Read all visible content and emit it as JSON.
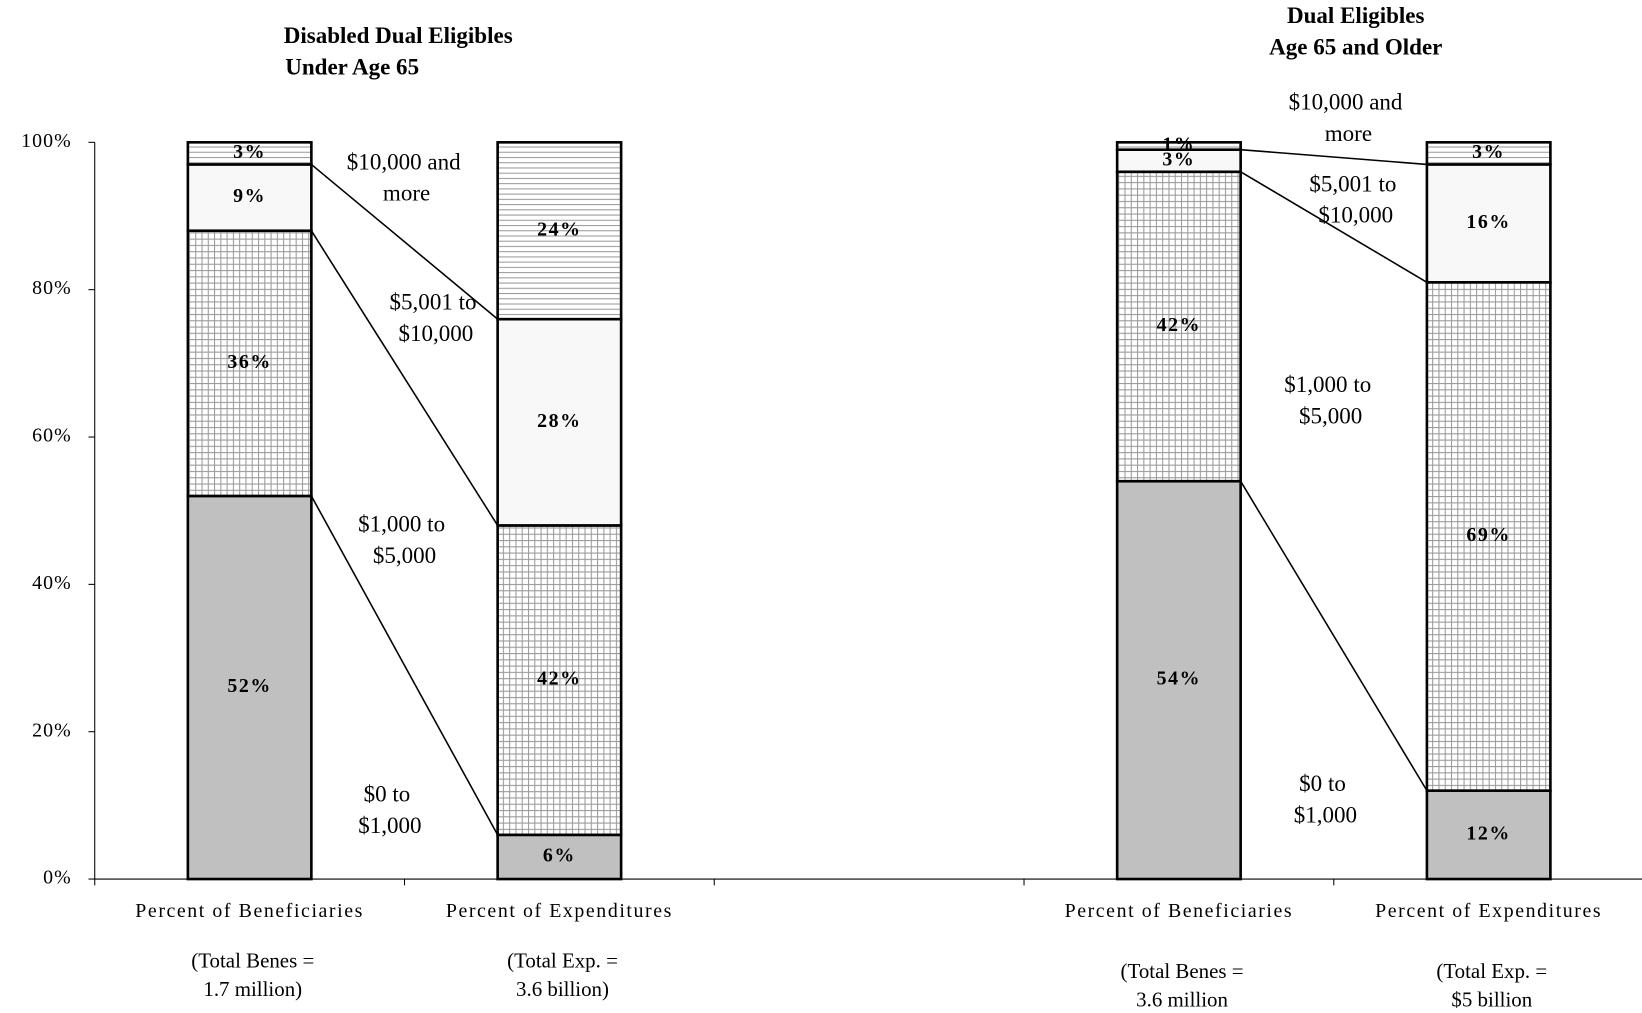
{
  "chart_data": {
    "type": "stacked_bar",
    "group_titles": [
      [
        "Disabled Dual Eligibles",
        "Under Age 65"
      ],
      [
        "Dual Eligibles",
        "Age 65 and Older"
      ]
    ],
    "categories": [
      "Percent of Beneficiaries",
      "Percent of Expenditures",
      null,
      "Percent of Beneficiaries",
      "Percent of Expenditures"
    ],
    "notes": [
      [
        "(Total Benes =",
        "1.7 million)"
      ],
      [
        "(Total Exp. =",
        "3.6 billion)"
      ],
      null,
      [
        "(Total Benes =",
        "3.6 million"
      ],
      [
        "(Total Exp. =",
        "$5 billion"
      ]
    ],
    "series": [
      {
        "name": "$0 to $1,000",
        "color": "#c0c0c0",
        "pattern": "solid",
        "values": [
          52,
          6,
          null,
          54,
          12
        ],
        "value_labels": [
          "52%",
          "6%",
          null,
          "54%",
          "12%"
        ]
      },
      {
        "name": "$1,000 to $5,000",
        "color": "#ffffff",
        "pattern": "grid",
        "values": [
          36,
          42,
          null,
          42,
          69
        ],
        "value_labels": [
          "36%",
          "42%",
          null,
          "42%",
          "69%"
        ]
      },
      {
        "name": "$5,001 to $10,000",
        "color": "#f8f8f8",
        "pattern": "solid",
        "values": [
          9,
          28,
          null,
          3,
          16
        ],
        "value_labels": [
          "9%",
          "28%",
          null,
          "3%",
          "16%"
        ]
      },
      {
        "name": "$10,000 and more",
        "color": "#ffffff",
        "pattern": "horizontal",
        "values": [
          3,
          24,
          null,
          1,
          3
        ],
        "value_labels": [
          "3%",
          "24%",
          null,
          "1%",
          "3%"
        ]
      }
    ],
    "ylim": [
      0,
      100
    ],
    "yticks": [
      {
        "value": 0,
        "label": "0%"
      },
      {
        "value": 20,
        "label": "20%"
      },
      {
        "value": 40,
        "label": "40%"
      },
      {
        "value": 60,
        "label": "60%"
      },
      {
        "value": 80,
        "label": "80%"
      },
      {
        "value": 100,
        "label": "100%"
      }
    ]
  }
}
